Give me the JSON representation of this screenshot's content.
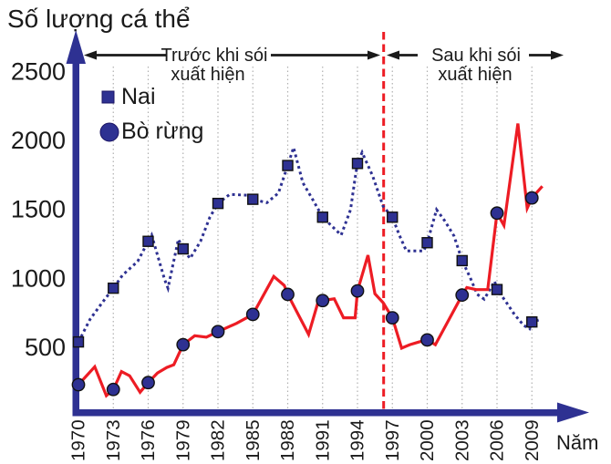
{
  "title": "Số lượng cá thể",
  "x_axis_label": "Năm",
  "legend": {
    "items": [
      {
        "label": "Nai",
        "marker": "square"
      },
      {
        "label": "Bò rừng",
        "marker": "circle"
      }
    ]
  },
  "annotations": {
    "before_wolves": {
      "line1": "Trước khi sói",
      "line2": "xuất hiện"
    },
    "after_wolves": {
      "line1": "Sau khi sói",
      "line2": "xuất hiện"
    }
  },
  "colors": {
    "navy": "#2E3192",
    "red": "#ED1C24",
    "grid": "#B0B0B0",
    "text": "#1A1A1A",
    "marker_edge": "#1B1464",
    "background": "#FFFFFF"
  },
  "chart_data": {
    "type": "line",
    "title": "Số lượng cá thể",
    "xlabel": "Năm",
    "ylabel": "Số lượng cá thể",
    "xlim": [
      1970,
      2011
    ],
    "ylim": [
      0,
      2500
    ],
    "x_ticks": [
      1970,
      1973,
      1976,
      1979,
      1982,
      1985,
      1988,
      1991,
      1994,
      1997,
      2000,
      2003,
      2006,
      2009
    ],
    "y_ticks": [
      500,
      1000,
      1500,
      2000,
      2500
    ],
    "grid": "vertical-dotted",
    "legend_position": "top-left-inside",
    "separator_year": 1996.25,
    "separator_style": "red-dashed-vertical",
    "series": [
      {
        "name": "Nai",
        "marker": "square",
        "line_style": "dotted",
        "line_color": "#2E3192",
        "marker_color": "#2E3192",
        "marker_years": [
          1970,
          1973,
          1976,
          1979,
          1982,
          1985,
          1988,
          1991,
          1994,
          1997,
          2000,
          2003,
          2006,
          2009
        ],
        "marker_values": [
          535,
          925,
          1265,
          1210,
          1540,
          1570,
          1815,
          1440,
          1830,
          1440,
          1255,
          1125,
          915,
          680
        ],
        "line_points": [
          [
            1970,
            535
          ],
          [
            1971,
            700
          ],
          [
            1972,
            815
          ],
          [
            1973,
            925
          ],
          [
            1973.8,
            1020
          ],
          [
            1975.1,
            1120
          ],
          [
            1976,
            1265
          ],
          [
            1976.3,
            1310
          ],
          [
            1976.8,
            1165
          ],
          [
            1977.4,
            990
          ],
          [
            1977.7,
            925
          ],
          [
            1978.6,
            1280
          ],
          [
            1979,
            1210
          ],
          [
            1979.6,
            1140
          ],
          [
            1980.5,
            1265
          ],
          [
            1981.3,
            1440
          ],
          [
            1982,
            1540
          ],
          [
            1983,
            1605
          ],
          [
            1984.5,
            1600
          ],
          [
            1985,
            1570
          ],
          [
            1986.2,
            1545
          ],
          [
            1987.2,
            1615
          ],
          [
            1988,
            1815
          ],
          [
            1988.5,
            1945
          ],
          [
            1989.3,
            1690
          ],
          [
            1990.2,
            1560
          ],
          [
            1991,
            1440
          ],
          [
            1992.6,
            1310
          ],
          [
            1993.4,
            1495
          ],
          [
            1993.8,
            1725
          ],
          [
            1994,
            1830
          ],
          [
            1994.4,
            1910
          ],
          [
            1995.3,
            1740
          ],
          [
            1996.2,
            1520
          ],
          [
            1997,
            1440
          ],
          [
            1997.6,
            1310
          ],
          [
            1998.2,
            1195
          ],
          [
            1999.7,
            1195
          ],
          [
            2000,
            1255
          ],
          [
            2000.8,
            1495
          ],
          [
            2001.5,
            1415
          ],
          [
            2002.3,
            1305
          ],
          [
            2003,
            1125
          ],
          [
            2003.7,
            1000
          ],
          [
            2004.3,
            880
          ],
          [
            2004.9,
            845
          ],
          [
            2005.8,
            975
          ],
          [
            2006,
            915
          ],
          [
            2006.7,
            835
          ],
          [
            2007.5,
            735
          ],
          [
            2008.3,
            655
          ],
          [
            2008.8,
            630
          ],
          [
            2009,
            680
          ],
          [
            2009.8,
            700
          ]
        ]
      },
      {
        "name": "Bò rừng",
        "marker": "circle",
        "line_style": "solid",
        "line_color": "#ED1C24",
        "marker_color": "#2E3192",
        "marker_years": [
          1970,
          1973,
          1976,
          1979,
          1982,
          1985,
          1988,
          1991,
          1994,
          1997,
          2000,
          2003,
          2006,
          2009
        ],
        "marker_values": [
          225,
          190,
          240,
          515,
          610,
          735,
          880,
          835,
          905,
          710,
          550,
          875,
          1470,
          1580
        ],
        "line_points": [
          [
            1970,
            225
          ],
          [
            1971.4,
            355
          ],
          [
            1972.4,
            145
          ],
          [
            1973,
            190
          ],
          [
            1973.7,
            320
          ],
          [
            1974.4,
            290
          ],
          [
            1975.3,
            170
          ],
          [
            1976,
            240
          ],
          [
            1976.8,
            310
          ],
          [
            1977.6,
            350
          ],
          [
            1978.2,
            370
          ],
          [
            1979,
            515
          ],
          [
            1980,
            580
          ],
          [
            1981,
            570
          ],
          [
            1982,
            610
          ],
          [
            1983.6,
            670
          ],
          [
            1985,
            735
          ],
          [
            1986.8,
            1010
          ],
          [
            1987.7,
            945
          ],
          [
            1988,
            880
          ],
          [
            1989.8,
            590
          ],
          [
            1990.7,
            850
          ],
          [
            1991,
            835
          ],
          [
            1992,
            848
          ],
          [
            1992.8,
            710
          ],
          [
            1993.8,
            710
          ],
          [
            1994,
            905
          ],
          [
            1994.9,
            1165
          ],
          [
            1995.5,
            885
          ],
          [
            1996.2,
            820
          ],
          [
            1997,
            710
          ],
          [
            1997.8,
            490
          ],
          [
            1998.5,
            515
          ],
          [
            1999.3,
            535
          ],
          [
            2000,
            550
          ],
          [
            2000.7,
            515
          ],
          [
            2003,
            875
          ],
          [
            2003.4,
            930
          ],
          [
            2004.2,
            915
          ],
          [
            2005.2,
            915
          ],
          [
            2006,
            1470
          ],
          [
            2006.6,
            1380
          ],
          [
            2007.8,
            2120
          ],
          [
            2008.6,
            1505
          ],
          [
            2009,
            1580
          ],
          [
            2009.9,
            1665
          ]
        ]
      }
    ]
  }
}
